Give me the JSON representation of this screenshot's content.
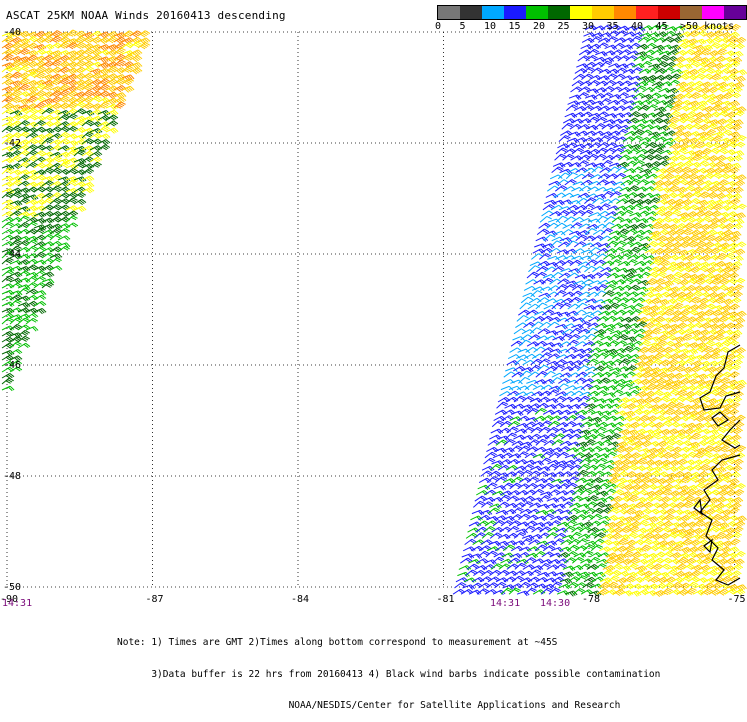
{
  "title": "ASCAT 25KM NOAA Winds 20160413 descending",
  "scale": {
    "colors": [
      "#777777",
      "#333333",
      "#00a8ff",
      "#1a1aff",
      "#00c000",
      "#006800",
      "#ffff00",
      "#ffcc00",
      "#ff8800",
      "#ff2020",
      "#cc0000",
      "#996633",
      "#ff00ff",
      "#660099"
    ],
    "labels": [
      {
        "value": "0",
        "tick": 0
      },
      {
        "value": "5",
        "tick": 1
      },
      {
        "value": "10",
        "tick": 2
      },
      {
        "value": "15",
        "tick": 3
      },
      {
        "value": "20",
        "tick": 4
      },
      {
        "value": "25",
        "tick": 5
      },
      {
        "value": "30",
        "tick": 6
      },
      {
        "value": "35",
        "tick": 7
      },
      {
        "value": "40",
        "tick": 8
      },
      {
        "value": "45",
        "tick": 9
      },
      {
        "value": ">50 knots",
        "tick": 10
      }
    ]
  },
  "map": {
    "x_axis_labels": [
      "-90",
      "-87",
      "-84",
      "-81",
      "-78",
      "-75"
    ],
    "y_axis_labels": [
      "-40",
      "-42",
      "-44",
      "-46",
      "-48",
      "-50"
    ],
    "time_labels": [
      "14:31",
      "14:31",
      "14:30"
    ]
  },
  "notes": [
    "Note: 1) Times are GMT 2)Times along bottom correspond to measurement at ~45S",
    "      3)Data buffer is 22 hrs from 20160413 4) Black wind barbs indicate possible contamination",
    "                              NOAA/NESDIS/Center for Satellite Applications and Research"
  ]
}
